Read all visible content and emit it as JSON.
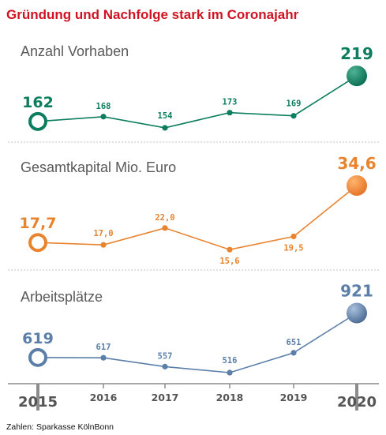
{
  "title": "Gründung und Nachfolge stark im Coronajahr",
  "source": "Zahlen: Sparkasse KölnBonn",
  "colors": {
    "title": "#cf1322",
    "divider": "#d6d6d6",
    "axis": "#8c8c8c",
    "year_text": "#555555",
    "label_text": "#595959"
  },
  "chart_data": {
    "type": "line",
    "categories": [
      "2015",
      "2016",
      "2017",
      "2018",
      "2019",
      "2020"
    ],
    "series": [
      {
        "name": "Anzahl Vorhaben",
        "values": [
          162,
          168,
          154,
          173,
          169,
          219
        ],
        "labels": [
          "162",
          "168",
          "154",
          "173",
          "169",
          "219"
        ],
        "color": "#0d7d5f",
        "end_gradient": [
          "#4fb494",
          "#0c7156"
        ]
      },
      {
        "name": "Gesamtkapital Mio. Euro",
        "values": [
          17.7,
          17.0,
          22.0,
          15.6,
          19.5,
          34.6
        ],
        "labels": [
          "17,7",
          "17,0",
          "22,0",
          "15,6",
          "19,5",
          "34,6"
        ],
        "color": "#e8832e",
        "end_gradient": [
          "#ffb46e",
          "#e6772a"
        ]
      },
      {
        "name": "Arbeitsplätze",
        "values": [
          619,
          617,
          557,
          516,
          651,
          921
        ],
        "labels": [
          "619",
          "617",
          "557",
          "516",
          "651",
          "921"
        ],
        "color": "#5b7fa8",
        "end_gradient": [
          "#a9c1dd",
          "#4f6f97"
        ]
      }
    ],
    "grid": false,
    "legend": "none"
  }
}
